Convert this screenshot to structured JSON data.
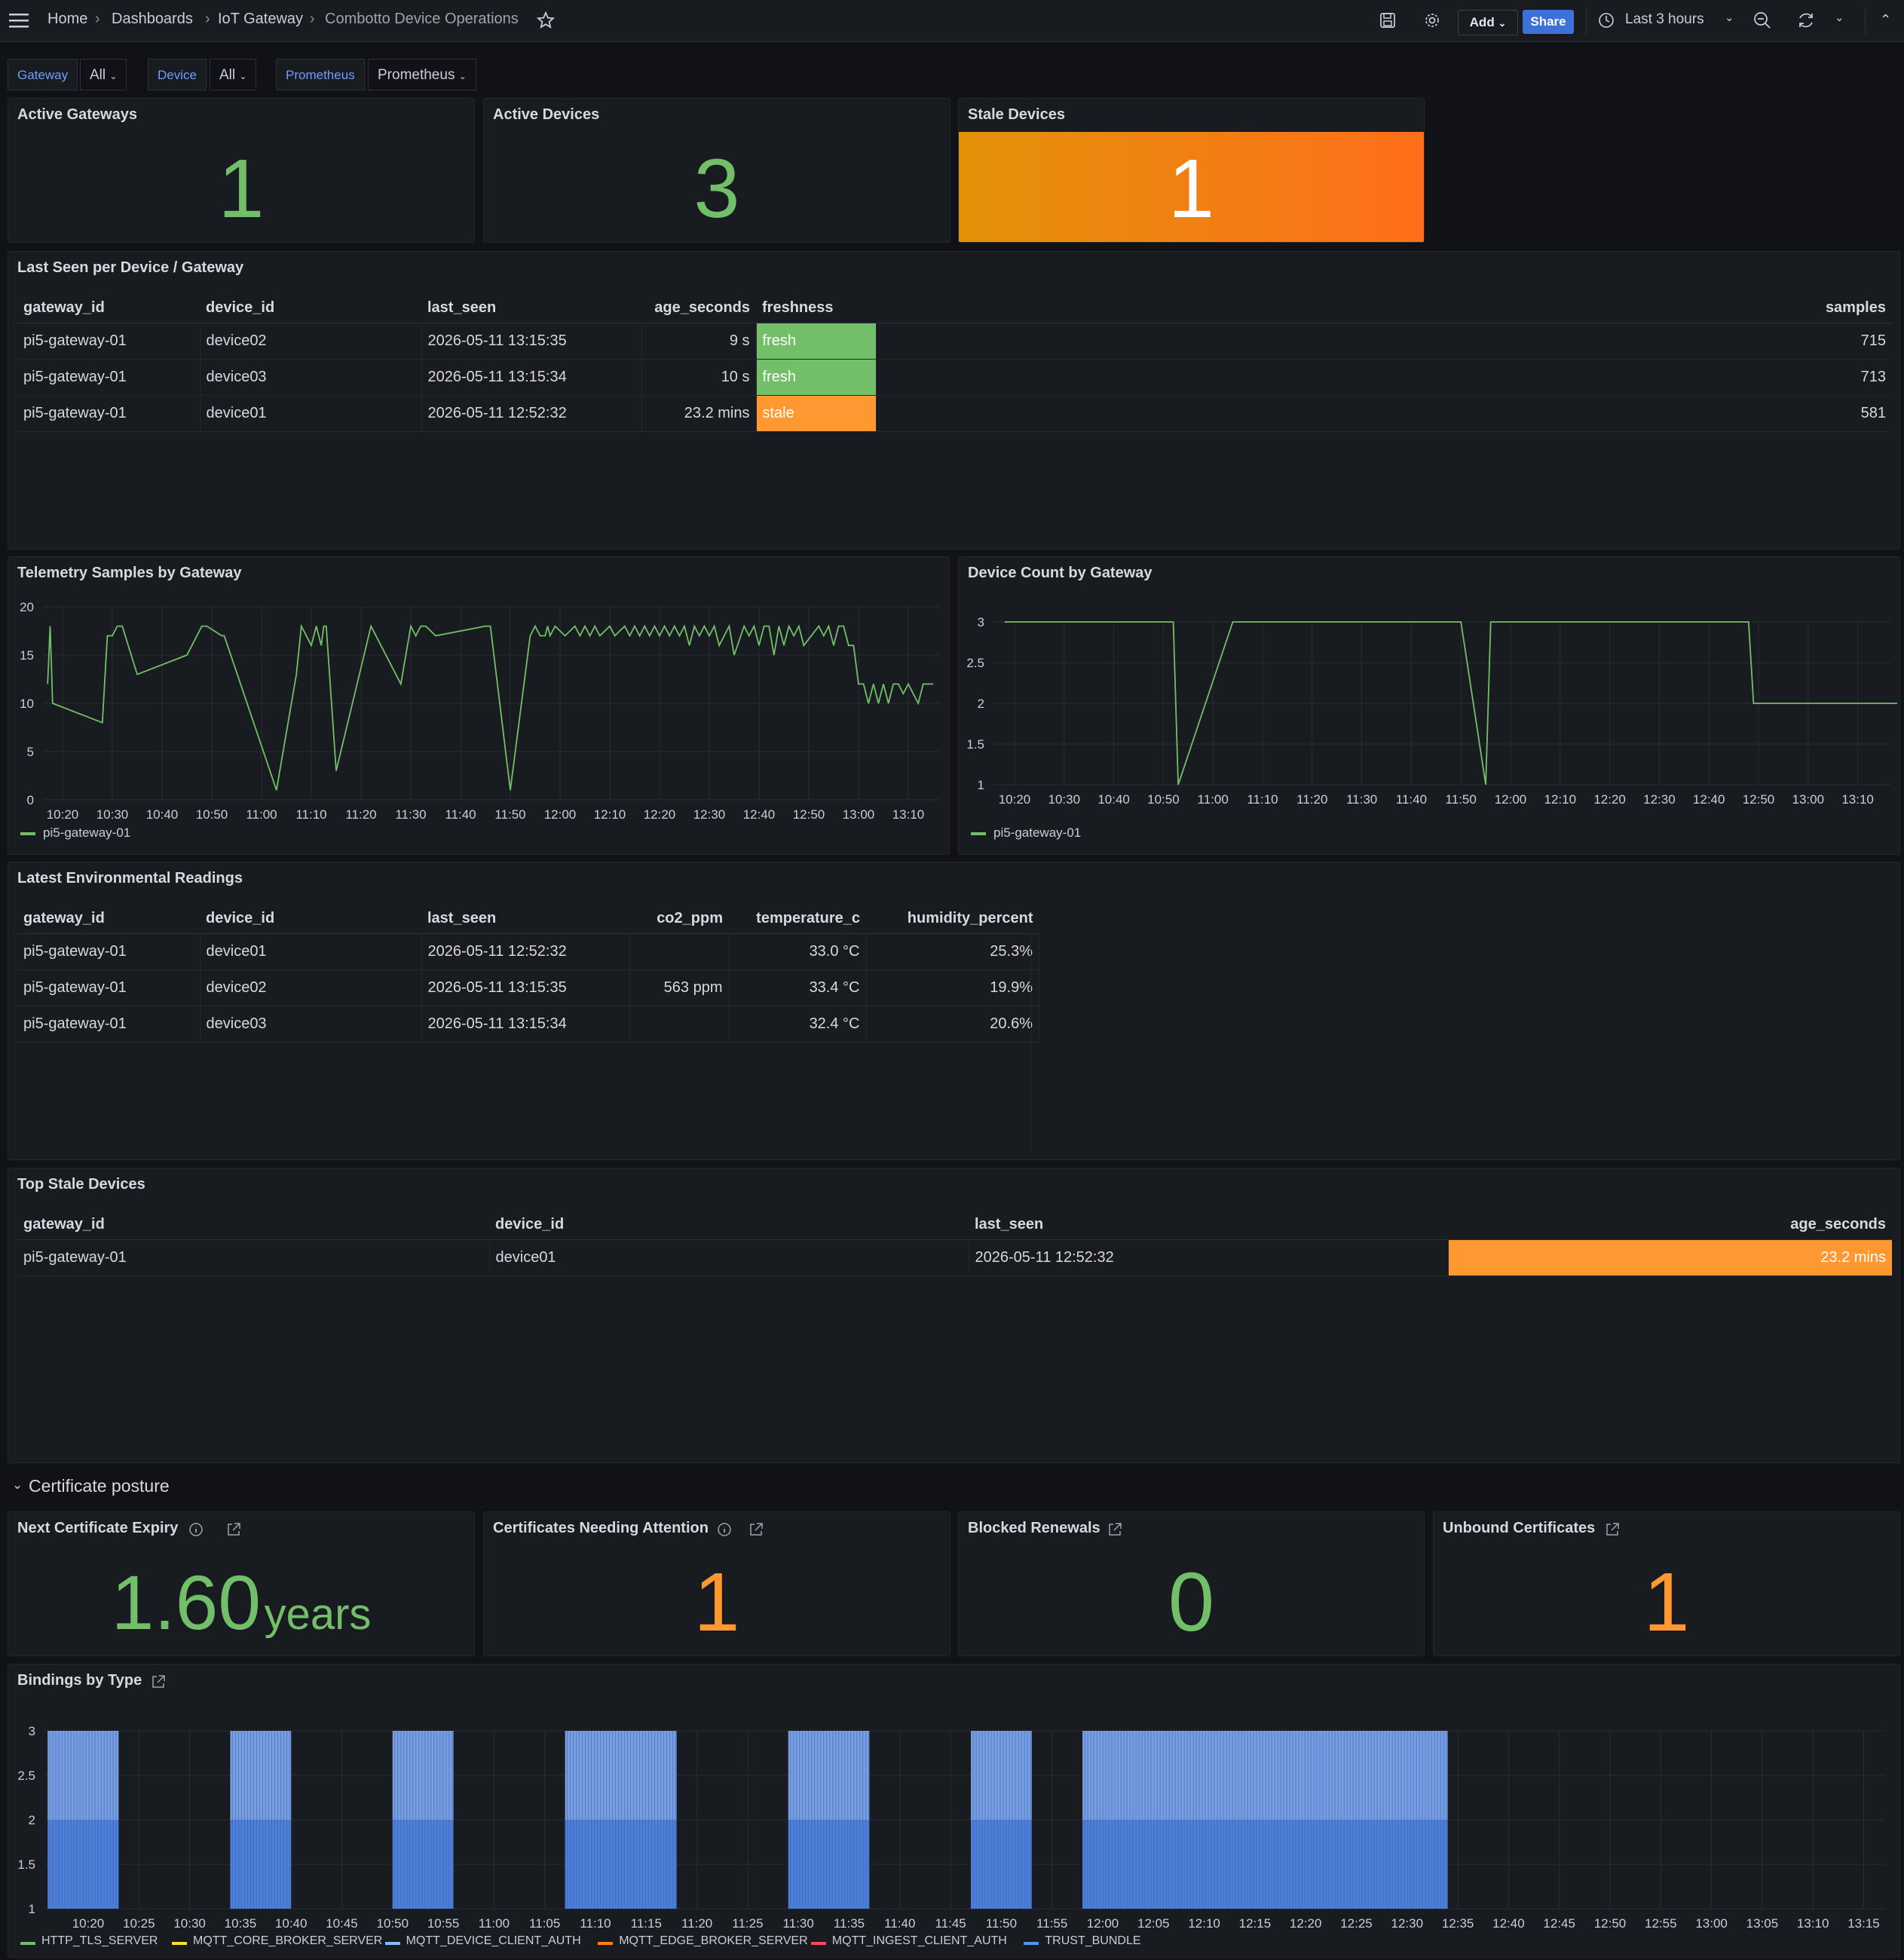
{
  "topbar": {
    "breadcrumb": [
      "Home",
      "Dashboards",
      "IoT Gateway",
      "Combotto Device Operations"
    ],
    "add_label": "Add",
    "share_label": "Share",
    "time_range": "Last 3 hours"
  },
  "variables": [
    {
      "label": "Gateway",
      "value": "All"
    },
    {
      "label": "Device",
      "value": "All"
    },
    {
      "label": "Prometheus",
      "value": "Prometheus"
    }
  ],
  "stats": {
    "active_gateways": {
      "title": "Active Gateways",
      "value": "1"
    },
    "active_devices": {
      "title": "Active Devices",
      "value": "3"
    },
    "stale_devices": {
      "title": "Stale Devices",
      "value": "1"
    }
  },
  "last_seen": {
    "title": "Last Seen per Device / Gateway",
    "columns": [
      "gateway_id",
      "device_id",
      "last_seen",
      "age_seconds",
      "freshness",
      "samples"
    ],
    "rows": [
      [
        "pi5-gateway-01",
        "device02",
        "2026-05-11 13:15:35",
        "9 s",
        "fresh",
        "715"
      ],
      [
        "pi5-gateway-01",
        "device03",
        "2026-05-11 13:15:34",
        "10 s",
        "fresh",
        "713"
      ],
      [
        "pi5-gateway-01",
        "device01",
        "2026-05-11 12:52:32",
        "23.2 mins",
        "stale",
        "581"
      ]
    ]
  },
  "telemetry": {
    "title": "Telemetry Samples by Gateway",
    "legend": "pi5-gateway-01"
  },
  "device_count": {
    "title": "Device Count by Gateway",
    "legend": "pi5-gateway-01"
  },
  "env": {
    "title": "Latest Environmental Readings",
    "columns": [
      "gateway_id",
      "device_id",
      "last_seen",
      "co2_ppm",
      "temperature_c",
      "humidity_percent"
    ],
    "rows": [
      [
        "pi5-gateway-01",
        "device01",
        "2026-05-11 12:52:32",
        "",
        "33.0 °C",
        "25.3%"
      ],
      [
        "pi5-gateway-01",
        "device02",
        "2026-05-11 13:15:35",
        "563 ppm",
        "33.4 °C",
        "19.9%"
      ],
      [
        "pi5-gateway-01",
        "device03",
        "2026-05-11 13:15:34",
        "",
        "32.4 °C",
        "20.6%"
      ]
    ]
  },
  "top_stale": {
    "title": "Top Stale Devices",
    "columns": [
      "gateway_id",
      "device_id",
      "last_seen",
      "age_seconds"
    ],
    "rows": [
      [
        "pi5-gateway-01",
        "device01",
        "2026-05-11 12:52:32",
        "23.2 mins"
      ]
    ]
  },
  "cert_row": {
    "title": "Certificate posture"
  },
  "cert_stats": {
    "next_expiry": {
      "title": "Next Certificate Expiry",
      "value": "1.60",
      "unit": "years"
    },
    "attention": {
      "title": "Certificates Needing Attention",
      "value": "1"
    },
    "blocked": {
      "title": "Blocked Renewals",
      "value": "0"
    },
    "unbound": {
      "title": "Unbound Certificates",
      "value": "1"
    }
  },
  "bindings": {
    "title": "Bindings by Type"
  },
  "colors": {
    "green": "#73bf69",
    "orange": "#ff9830",
    "blue": "#5794f2",
    "stale_gradient_start": "#e3920a",
    "stale_gradient_end": "#ff6e1a"
  },
  "chart_data": [
    {
      "type": "line",
      "title": "Telemetry Samples by Gateway",
      "x_ticks": [
        "10:20",
        "10:30",
        "10:40",
        "10:50",
        "11:00",
        "11:10",
        "11:20",
        "11:30",
        "11:40",
        "11:50",
        "12:00",
        "12:10",
        "12:20",
        "12:30",
        "12:40",
        "12:50",
        "13:00",
        "13:10"
      ],
      "ylim": [
        0,
        20
      ],
      "y_ticks": [
        0,
        5,
        10,
        15,
        20
      ],
      "series": [
        {
          "name": "pi5-gateway-01",
          "x_minutes_since_start": [
            0,
            0.5,
            1,
            11,
            12,
            13,
            14,
            15,
            18,
            28,
            30,
            31,
            32,
            35,
            35.5,
            46,
            48,
            50,
            51,
            53,
            54,
            55,
            55.5,
            56,
            58,
            65,
            67,
            68,
            69,
            70,
            71,
            73,
            74,
            75,
            76,
            78,
            88,
            89,
            93,
            97,
            98,
            99,
            100,
            100.5,
            101,
            102,
            104,
            106,
            107,
            108,
            109,
            110,
            111,
            113,
            114,
            116,
            117,
            118,
            119,
            120,
            121,
            122,
            123,
            124,
            125,
            126,
            127,
            128,
            129,
            130,
            131,
            132,
            133,
            134,
            135,
            136,
            137,
            138,
            140,
            141,
            142,
            143,
            144,
            145,
            146,
            147,
            148,
            149,
            150,
            151,
            152,
            155,
            156,
            157,
            158,
            159,
            160,
            161,
            162,
            163,
            164,
            165,
            166,
            167,
            168,
            169,
            170,
            171,
            172,
            173,
            174,
            175,
            176,
            177,
            178
          ],
          "values": [
            12,
            18,
            10,
            8,
            17,
            17,
            18,
            18,
            13,
            15,
            17,
            18,
            18,
            17,
            17,
            1,
            7,
            13,
            18,
            16,
            18,
            16,
            18,
            18,
            3,
            18,
            16,
            15,
            14,
            13,
            12,
            18,
            17,
            18,
            18,
            17,
            18,
            18,
            1,
            17,
            18,
            17,
            17,
            18,
            17,
            18,
            17,
            18,
            17,
            18,
            17,
            18,
            17,
            18,
            17,
            18,
            17,
            18,
            17,
            18,
            17,
            18,
            17,
            18,
            17,
            18,
            17,
            18,
            16,
            18,
            17,
            18,
            17,
            18,
            16,
            17,
            18,
            15,
            18,
            17,
            18,
            16,
            18,
            18,
            15,
            18,
            16,
            18,
            17,
            18,
            16,
            18,
            17,
            18,
            16,
            18,
            18,
            16,
            16,
            12,
            12,
            10,
            12,
            10,
            12,
            10,
            12,
            12,
            11,
            12,
            11,
            10,
            12,
            12,
            12,
            11,
            12,
            8
          ]
        }
      ]
    },
    {
      "type": "line",
      "title": "Device Count by Gateway",
      "x_ticks": [
        "10:20",
        "10:30",
        "10:40",
        "10:50",
        "11:00",
        "11:10",
        "11:20",
        "11:30",
        "11:40",
        "11:50",
        "12:00",
        "12:10",
        "12:20",
        "12:30",
        "12:40",
        "12:50",
        "13:00",
        "13:10"
      ],
      "ylim": [
        1,
        3
      ],
      "y_ticks": [
        1,
        1.5,
        2,
        2.5,
        3
      ],
      "series": [
        {
          "name": "pi5-gateway-01",
          "x_minutes_since_start": [
            0,
            34,
            35,
            46,
            47,
            50,
            92,
            97,
            98,
            150,
            151,
            165,
            166,
            180
          ],
          "values": [
            3,
            3,
            1,
            3,
            3,
            3,
            3,
            1,
            3,
            3,
            2,
            2,
            2,
            2
          ]
        }
      ]
    },
    {
      "type": "bar",
      "title": "Bindings by Type",
      "x_ticks": [
        "10:20",
        "10:25",
        "10:30",
        "10:35",
        "10:40",
        "10:45",
        "10:50",
        "10:55",
        "11:00",
        "11:05",
        "11:10",
        "11:15",
        "11:20",
        "11:25",
        "11:30",
        "11:35",
        "11:40",
        "11:45",
        "11:50",
        "11:55",
        "12:00",
        "12:05",
        "12:10",
        "12:15",
        "12:20",
        "12:25",
        "12:30",
        "12:35",
        "12:40",
        "12:45",
        "12:50",
        "12:55",
        "13:00",
        "13:05",
        "13:10",
        "13:15"
      ],
      "ylim": [
        1,
        3
      ],
      "y_ticks": [
        1,
        1.5,
        2,
        2.5,
        3
      ],
      "active_blocks": [
        [
          10.16,
          10.23
        ],
        [
          10.34,
          10.4
        ],
        [
          10.5,
          10.56
        ],
        [
          11.07,
          11.18
        ],
        [
          11.29,
          11.37
        ],
        [
          11.47,
          11.53
        ],
        [
          11.58,
          12.34
        ]
      ],
      "stacked_levels": {
        "lower": 2,
        "upper": 3
      },
      "series_names": [
        "HTTP_TLS_SERVER",
        "MQTT_CORE_BROKER_SERVER",
        "MQTT_DEVICE_CLIENT_AUTH",
        "MQTT_EDGE_BROKER_SERVER",
        "MQTT_INGEST_CLIENT_AUTH",
        "TRUST_BUNDLE"
      ],
      "series_colors": [
        "#73bf69",
        "#fade2a",
        "#8ab8ff",
        "#ff7f17",
        "#f2495c",
        "#5794f2"
      ]
    }
  ]
}
